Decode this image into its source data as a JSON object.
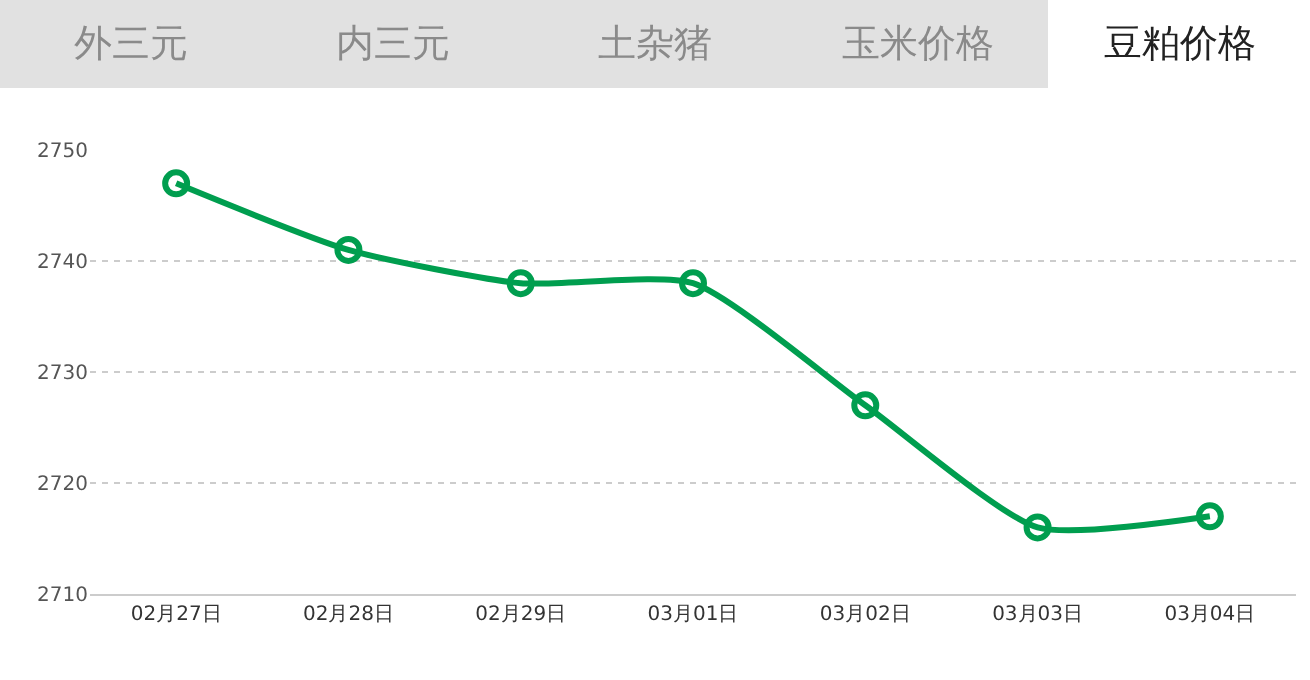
{
  "chart_data": {
    "type": "line",
    "title": "豆粕价格",
    "annotations": [
      "外三元",
      "内三元",
      "土杂猪",
      "玉米价格"
    ],
    "categories": [
      "02月27日",
      "02月28日",
      "02月29日",
      "03月01日",
      "03月02日",
      "03月03日",
      "03月04日"
    ],
    "series": [
      {
        "color": "#009e4f",
        "values": [
          2747,
          2741,
          2738,
          2738,
          2727,
          2716,
          2717
        ]
      }
    ],
    "ylim": [
      2710,
      2750
    ],
    "yticks": [
      2710,
      2720,
      2730,
      2740,
      2750
    ],
    "grid": "y",
    "marker": "circle",
    "line_style": "solid"
  }
}
